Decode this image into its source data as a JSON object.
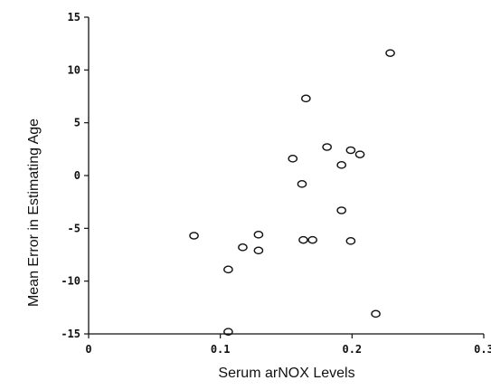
{
  "chart_data": {
    "type": "scatter",
    "title": "",
    "xlabel": "Serum arNOX Levels",
    "ylabel": "Mean Error in Estimating Age",
    "xlim": [
      0,
      0.3
    ],
    "ylim": [
      -15,
      15
    ],
    "x_ticks": [
      "0",
      "0.1",
      "0.2",
      "0.3"
    ],
    "y_ticks": [
      "15",
      "10",
      "5",
      "0",
      "-5",
      "-10",
      "-15"
    ],
    "grid": false,
    "legend": "none",
    "marker_color": "#111111",
    "points": [
      {
        "x": 0.229,
        "y": 11.6
      },
      {
        "x": 0.165,
        "y": 7.3
      },
      {
        "x": 0.181,
        "y": 2.7
      },
      {
        "x": 0.199,
        "y": 2.4
      },
      {
        "x": 0.206,
        "y": 2.0
      },
      {
        "x": 0.155,
        "y": 1.6
      },
      {
        "x": 0.192,
        "y": 1.0
      },
      {
        "x": 0.162,
        "y": -0.8
      },
      {
        "x": 0.192,
        "y": -3.3
      },
      {
        "x": 0.08,
        "y": -5.7
      },
      {
        "x": 0.129,
        "y": -5.6
      },
      {
        "x": 0.163,
        "y": -6.1
      },
      {
        "x": 0.17,
        "y": -6.1
      },
      {
        "x": 0.199,
        "y": -6.2
      },
      {
        "x": 0.117,
        "y": -6.8
      },
      {
        "x": 0.129,
        "y": -7.1
      },
      {
        "x": 0.106,
        "y": -8.9
      },
      {
        "x": 0.218,
        "y": -13.1
      },
      {
        "x": 0.106,
        "y": -14.8
      }
    ]
  }
}
